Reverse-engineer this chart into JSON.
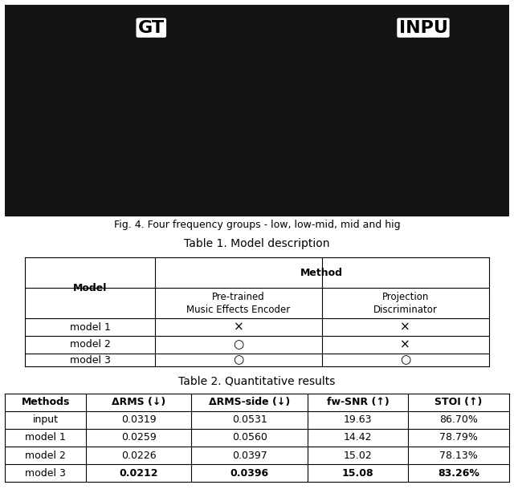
{
  "fig_caption": "Fig. 4. Four frequency groups - low, low-mid, mid and hig",
  "table1_title": "Table 1. Model description",
  "table1_header_col": "Model",
  "table1_header_method": "Method",
  "table1_subheader": [
    "Pre-trained\nMusic Effects Encoder",
    "Projection\nDiscriminator"
  ],
  "table1_rows": [
    [
      "model 1",
      "×",
      "×"
    ],
    [
      "model 2",
      "○",
      "×"
    ],
    [
      "model 3",
      "○",
      "○"
    ]
  ],
  "table2_title": "Table 2. Quantitative results",
  "table2_headers": [
    "Methods",
    "ΔRMS (↓)",
    "ΔRMS-side (↓)",
    "fw-SNR (↑)",
    "STOI (↑)"
  ],
  "table2_rows": [
    [
      "input",
      "0.0319",
      "0.0531",
      "19.63",
      "86.70%",
      false
    ],
    [
      "model 1",
      "0.0259",
      "0.0560",
      "14.42",
      "78.79%",
      false
    ],
    [
      "model 2",
      "0.0226",
      "0.0397",
      "15.02",
      "78.13%",
      false
    ],
    [
      "model 3",
      "0.0212",
      "0.0396",
      "15.08",
      "83.26%",
      true
    ]
  ],
  "top_image_placeholder_color": "#cccccc",
  "background_color": "#ffffff",
  "gt_label": "GT",
  "input_label": "INPU"
}
